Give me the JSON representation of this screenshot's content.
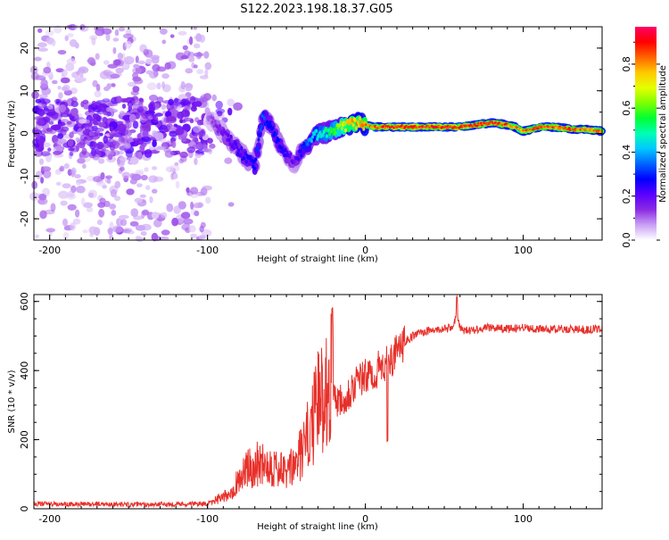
{
  "title": "S122.2023.198.18.37.G05",
  "chart_data": [
    {
      "type": "heatmap",
      "xlabel": "Height of straight line (km)",
      "ylabel": "Frequency (Hz)",
      "xlim": [
        -210,
        150
      ],
      "ylim": [
        -25,
        25
      ],
      "xticks": [
        -200,
        -100,
        0,
        100
      ],
      "yticks": [
        -20,
        -10,
        0,
        10,
        20
      ],
      "colorbar": {
        "label": "Normalized spectral amplitude",
        "range": [
          0.0,
          0.97
        ],
        "ticks": [
          0.0,
          0.2,
          0.4,
          0.6,
          0.8
        ],
        "colors": [
          "#ffffff",
          "#c9a0f5",
          "#8a2be2",
          "#5a00ff",
          "#0000ff",
          "#0064ff",
          "#00c8ff",
          "#00ffb4",
          "#00ff32",
          "#7dff00",
          "#e6ff00",
          "#ffc800",
          "#ff6400",
          "#ff0000",
          "#ff0064"
        ]
      },
      "ridge": {
        "x": [
          -100,
          -90,
          -80,
          -70,
          -65,
          -60,
          -55,
          -50,
          -45,
          -40,
          -35,
          -30,
          -25,
          -20,
          -15,
          -10,
          -5,
          0,
          5,
          10,
          20,
          40,
          60,
          70,
          80,
          90,
          95,
          100,
          110,
          120,
          130,
          140,
          150
        ],
        "frequency": [
          4,
          0,
          -4,
          -8,
          4,
          2,
          -2,
          -5,
          -7,
          -4,
          -2,
          0,
          0,
          1,
          1.5,
          2,
          2.5,
          2,
          1.5,
          1.5,
          1.5,
          1.5,
          1.5,
          2,
          2.5,
          2,
          1.5,
          0.5,
          1.5,
          1.5,
          1,
          1,
          0.5
        ],
        "amplitude": [
          0.1,
          0.2,
          0.25,
          0.3,
          0.35,
          0.3,
          0.3,
          0.25,
          0.2,
          0.3,
          0.4,
          0.5,
          0.55,
          0.6,
          0.7,
          0.8,
          0.85,
          0.9,
          0.9,
          0.92,
          0.95,
          0.95,
          0.95,
          0.92,
          0.93,
          0.9,
          0.85,
          0.88,
          0.9,
          0.9,
          0.9,
          0.9,
          0.88
        ]
      },
      "noise_region_x": [
        -210,
        -100
      ],
      "noise_band_frequency": [
        -5,
        8
      ]
    },
    {
      "type": "line",
      "xlabel": "Height of straight line (km)",
      "ylabel": "SNR (10 * v/v)",
      "xlim": [
        -210,
        150
      ],
      "ylim": [
        0,
        620
      ],
      "xticks": [
        -200,
        -100,
        0,
        100
      ],
      "yticks": [
        0,
        200,
        400,
        600
      ],
      "color": "#e8302a",
      "x": [
        -210,
        -190,
        -170,
        -150,
        -130,
        -110,
        -100,
        -90,
        -85,
        -80,
        -75,
        -70,
        -65,
        -60,
        -55,
        -50,
        -45,
        -40,
        -35,
        -30,
        -25,
        -22,
        -20,
        -15,
        -10,
        -5,
        0,
        5,
        10,
        15,
        20,
        25,
        30,
        35,
        40,
        50,
        55,
        58,
        60,
        65,
        70,
        80,
        90,
        100,
        110,
        120,
        130,
        140,
        150
      ],
      "y": [
        15,
        12,
        14,
        12,
        13,
        14,
        15,
        25,
        40,
        70,
        90,
        100,
        110,
        100,
        90,
        80,
        100,
        130,
        180,
        240,
        280,
        300,
        320,
        320,
        340,
        370,
        380,
        390,
        410,
        430,
        450,
        480,
        500,
        510,
        515,
        520,
        525,
        560,
        520,
        515,
        520,
        525,
        520,
        525,
        520,
        520,
        520,
        518,
        522
      ]
    }
  ]
}
